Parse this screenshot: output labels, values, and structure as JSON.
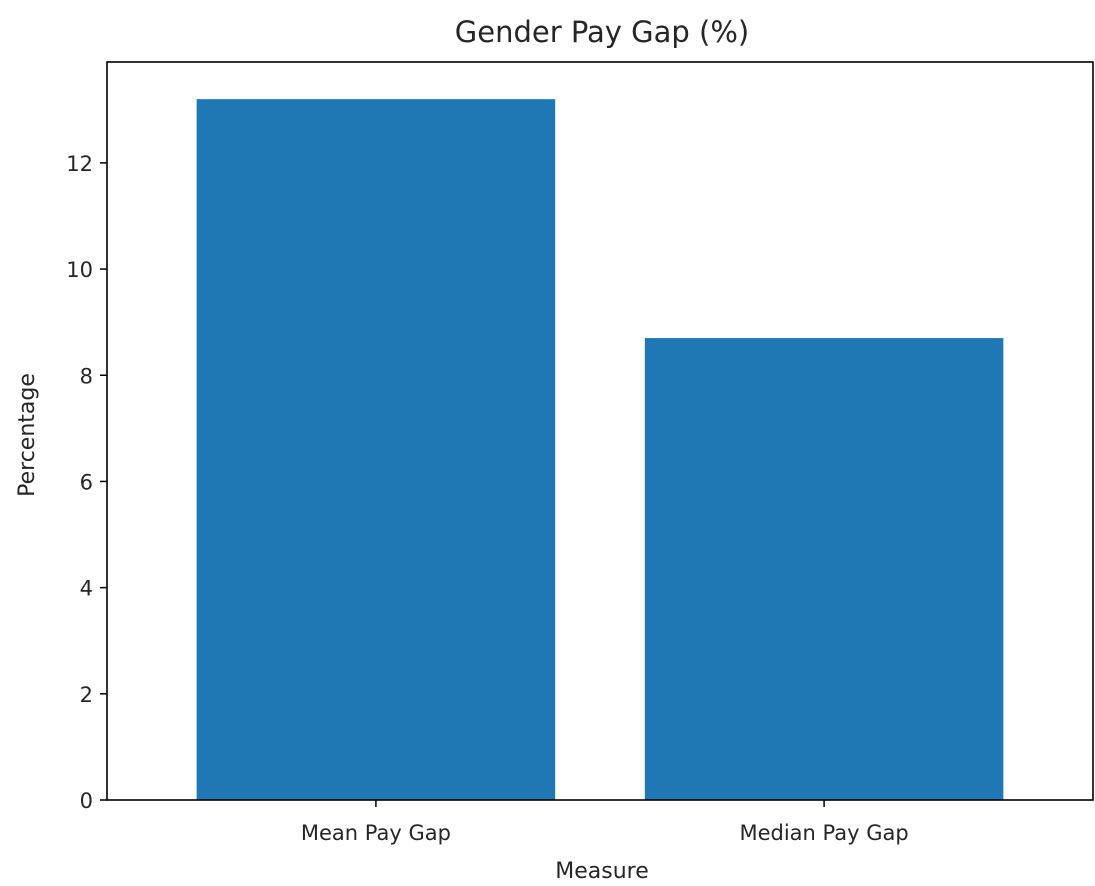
{
  "chart_data": {
    "type": "bar",
    "title": "Gender Pay Gap (%)",
    "xlabel": "Measure",
    "ylabel": "Percentage",
    "categories": [
      "Mean Pay Gap",
      "Median Pay Gap"
    ],
    "values": [
      13.2,
      8.7
    ],
    "ylim": [
      0,
      13.9
    ],
    "yticks": [
      "0",
      "2",
      "4",
      "6",
      "8",
      "10",
      "12"
    ],
    "bar_color": "#1f77b4",
    "grid": false,
    "legend": "none"
  }
}
